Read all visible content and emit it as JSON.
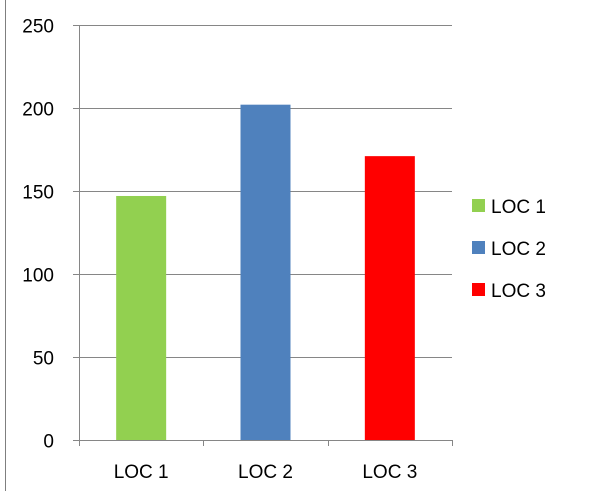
{
  "chart_data": {
    "type": "bar",
    "categories": [
      "LOC 1",
      "LOC 2",
      "LOC 3"
    ],
    "values": [
      147,
      202,
      171
    ],
    "colors": [
      "#92d050",
      "#4f81bd",
      "#ff0000"
    ],
    "ylim": [
      0,
      250
    ],
    "yticks": [
      "0",
      "50",
      "100",
      "150",
      "200",
      "250"
    ],
    "ytick_values": [
      0,
      50,
      100,
      150,
      200,
      250
    ],
    "grid": true,
    "legend": {
      "placement": "right",
      "entries": [
        "LOC 1",
        "LOC 2",
        "LOC 3"
      ]
    },
    "title": "",
    "xlabel": "",
    "ylabel": ""
  }
}
